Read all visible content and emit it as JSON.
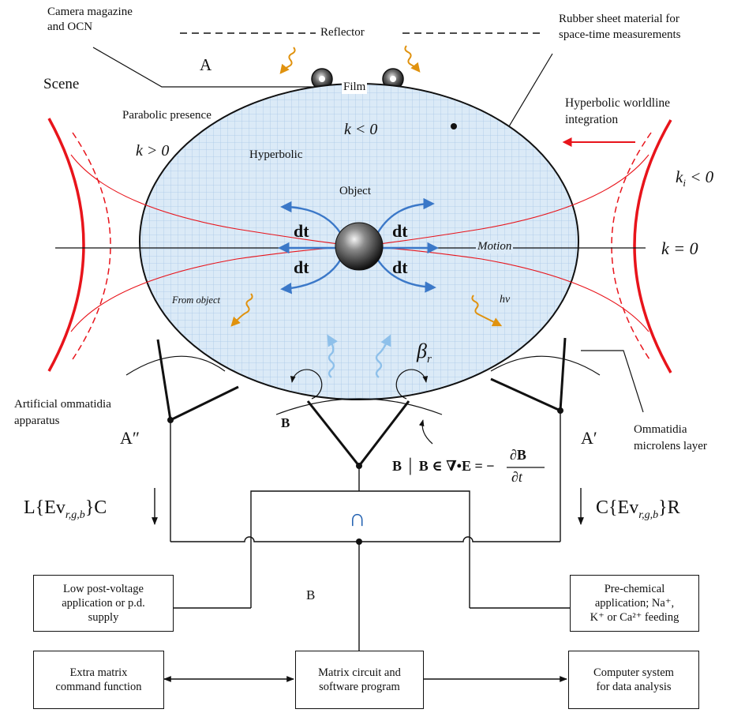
{
  "labels": {
    "camera_magazine": [
      "Camera magazine",
      "and OCN"
    ],
    "reflector": "Reflector",
    "film": "Film",
    "point_a": "A",
    "scene": "Scene",
    "rubber_sheet": [
      "Rubber sheet material for",
      "space-time measurements"
    ],
    "hyperbolic_worldline": [
      "Hyperbolic worldline",
      "integration"
    ],
    "parabolic_presence": "Parabolic presence",
    "k_pos": "k > 0",
    "k_neg": "k < 0",
    "hyperbolic": "Hyperbolic",
    "object": "Object",
    "ki_neg": "k",
    "ki_sub": "i",
    "ki_tail": " < 0",
    "k_zero": "k = 0",
    "dt": "dt",
    "motion": "Motion",
    "from_object": "From object",
    "hv": "hν",
    "beta": "β",
    "beta_sub": "r",
    "artificial_ommatidia": [
      "Artificial ommatidia",
      "apparatus"
    ],
    "ommatidia_microlens": [
      "Ommatidia",
      "microlens layer"
    ],
    "b_left": "B",
    "a_double_prime": "A″",
    "a_prime": "A′",
    "b_equation": "B │ B ∈ ∇•E = −",
    "db": "∂B",
    "dt_partial": "∂t",
    "left_formula": "L{Ev",
    "left_formula_sub": "r,g,b",
    "left_formula_tail": "}C",
    "right_formula": "C{Ev",
    "right_formula_sub": "r,g,b",
    "right_formula_tail": "}R",
    "intersection": "∩",
    "b_center": "B"
  },
  "boxes": {
    "low_voltage": [
      "Low post-voltage",
      "application or p.d.",
      "supply"
    ],
    "pre_chemical": [
      "Pre-chemical",
      "application; Na⁺,",
      "K⁺ or Ca²⁺ feeding"
    ],
    "extra_matrix": [
      "Extra matrix",
      "command function"
    ],
    "matrix_circuit": [
      "Matrix circuit and",
      "software program"
    ],
    "computer_system": [
      "Computer system",
      "for data analysis"
    ]
  },
  "colors": {
    "red": "#e8141b",
    "blue_arrow": "#3b78c8",
    "ellipse_fill": "#dbeaf7",
    "grid": "#9fc2e6",
    "orange": "#e0920e",
    "line": "#111111"
  }
}
